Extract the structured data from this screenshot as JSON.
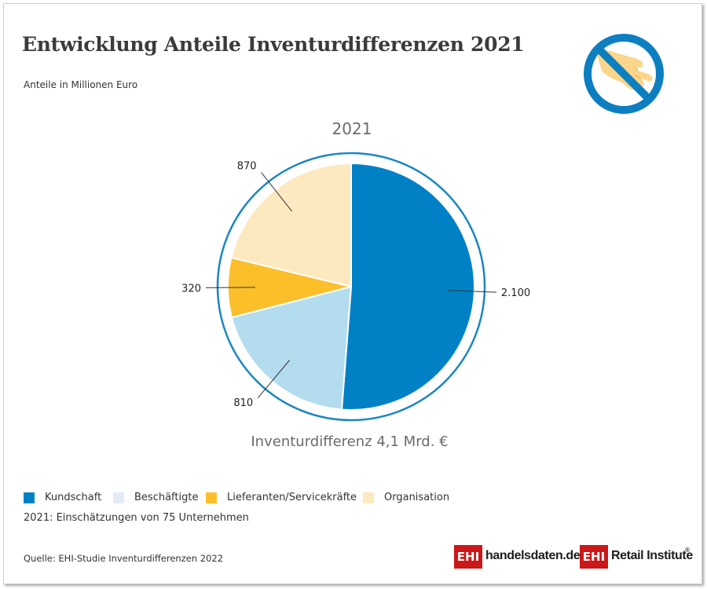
{
  "header": {
    "title": "Entwicklung Anteile Inventurdifferenzen 2021",
    "subtitle": "Anteile in Millionen Euro"
  },
  "chart_data": {
    "type": "pie",
    "title": "2021",
    "caption": "Inventurdifferenz 4,1 Mrd. €",
    "categories": [
      "Kundschaft",
      "Beschäftigte",
      "Lieferanten/Servicekräfte",
      "Organisation"
    ],
    "values": [
      2100,
      810,
      320,
      870
    ],
    "value_labels": [
      "2.100",
      "810",
      "320",
      "870"
    ],
    "colors": [
      "#0081c6",
      "#b3dcef",
      "#fbbf2a",
      "#fde9bf"
    ],
    "outer_ring_color": "#1a86c2",
    "legend_placement": "bottom-left"
  },
  "legend": [
    {
      "label": "Kundschaft",
      "color": "#0081c6"
    },
    {
      "label": "Beschäftigte",
      "color": "#e3ebf5"
    },
    {
      "label": "Lieferanten/Servicekräfte",
      "color": "#fbbf2a"
    },
    {
      "label": "Organisation",
      "color": "#fde9bf"
    }
  ],
  "footer": {
    "note": "2021: Einschätzungen von 75 Unternehmen",
    "source": "Quelle: EHI-Studie Inventurdifferenzen 2022",
    "brand1_box": "EHI",
    "brand1_text": "handelsdaten.de",
    "brand2_box": "EHI",
    "brand2_text": "Retail Institute",
    "brand2_reg": "®"
  },
  "icons": {
    "top_right": "no-theft-hand-icon"
  }
}
